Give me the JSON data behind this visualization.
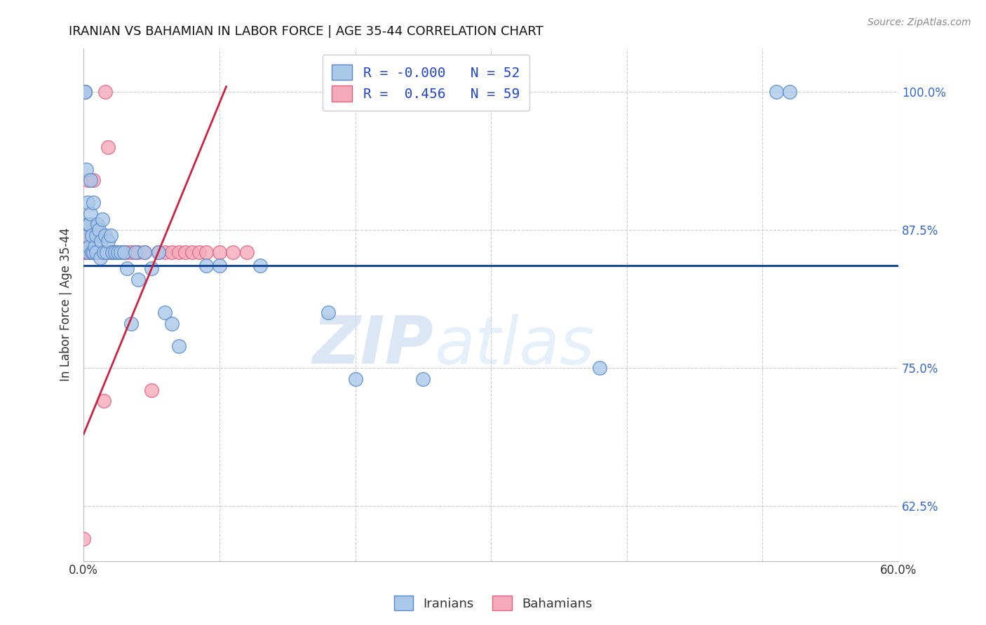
{
  "title": "IRANIAN VS BAHAMIAN IN LABOR FORCE | AGE 35-44 CORRELATION CHART",
  "source": "Source: ZipAtlas.com",
  "ylabel": "In Labor Force | Age 35-44",
  "xlim": [
    0.0,
    0.6
  ],
  "ylim": [
    0.575,
    1.04
  ],
  "xticks": [
    0.0,
    0.1,
    0.2,
    0.3,
    0.4,
    0.5,
    0.6
  ],
  "xticklabels": [
    "0.0%",
    "",
    "",
    "",
    "",
    "",
    "60.0%"
  ],
  "yticks": [
    0.625,
    0.75,
    0.875,
    1.0
  ],
  "yticklabels": [
    "62.5%",
    "75.0%",
    "87.5%",
    "100.0%"
  ],
  "blue_color": "#aac8e8",
  "pink_color": "#f5aabb",
  "blue_edge": "#5588cc",
  "pink_edge": "#e06080",
  "blue_trend_color": "#1a4a9a",
  "pink_trend_color": "#cc2244",
  "legend_R_blue": "-0.000",
  "legend_N_blue": "52",
  "legend_R_pink": "0.456",
  "legend_N_pink": "59",
  "blue_trend_y": 0.843,
  "pink_trend_x0": 0.0,
  "pink_trend_y0": 0.69,
  "pink_trend_x1": 0.105,
  "pink_trend_y1": 1.005,
  "blue_x": [
    0.001,
    0.001,
    0.002,
    0.002,
    0.003,
    0.003,
    0.003,
    0.004,
    0.004,
    0.005,
    0.005,
    0.006,
    0.006,
    0.007,
    0.007,
    0.008,
    0.009,
    0.009,
    0.01,
    0.011,
    0.012,
    0.013,
    0.014,
    0.015,
    0.016,
    0.017,
    0.018,
    0.02,
    0.021,
    0.023,
    0.025,
    0.027,
    0.03,
    0.032,
    0.035,
    0.038,
    0.04,
    0.045,
    0.05,
    0.055,
    0.06,
    0.065,
    0.07,
    0.09,
    0.1,
    0.13,
    0.18,
    0.2,
    0.25,
    0.38,
    0.51,
    0.52
  ],
  "blue_y": [
    1.0,
    1.0,
    0.87,
    0.93,
    0.88,
    0.9,
    0.855,
    0.88,
    0.86,
    0.89,
    0.92,
    0.87,
    0.855,
    0.9,
    0.855,
    0.86,
    0.87,
    0.855,
    0.88,
    0.875,
    0.85,
    0.865,
    0.885,
    0.855,
    0.87,
    0.855,
    0.865,
    0.87,
    0.855,
    0.855,
    0.855,
    0.855,
    0.855,
    0.84,
    0.79,
    0.855,
    0.83,
    0.855,
    0.84,
    0.855,
    0.8,
    0.79,
    0.77,
    0.843,
    0.843,
    0.843,
    0.8,
    0.74,
    0.74,
    0.75,
    1.0,
    1.0
  ],
  "pink_x": [
    0.0,
    0.0,
    0.001,
    0.001,
    0.001,
    0.001,
    0.002,
    0.002,
    0.002,
    0.003,
    0.003,
    0.003,
    0.004,
    0.004,
    0.004,
    0.005,
    0.005,
    0.005,
    0.006,
    0.006,
    0.006,
    0.007,
    0.007,
    0.007,
    0.008,
    0.008,
    0.009,
    0.009,
    0.01,
    0.01,
    0.011,
    0.012,
    0.013,
    0.015,
    0.016,
    0.017,
    0.018,
    0.02,
    0.022,
    0.025,
    0.03,
    0.032,
    0.035,
    0.038,
    0.04,
    0.045,
    0.05,
    0.055,
    0.06,
    0.065,
    0.07,
    0.075,
    0.08,
    0.085,
    0.09,
    0.1,
    0.11,
    0.12,
    0.025
  ],
  "pink_y": [
    0.595,
    0.855,
    0.855,
    0.855,
    0.87,
    1.0,
    0.87,
    0.855,
    0.855,
    0.87,
    0.855,
    0.92,
    0.88,
    0.855,
    0.855,
    0.86,
    0.855,
    0.855,
    0.87,
    0.855,
    0.855,
    0.875,
    0.855,
    0.92,
    0.855,
    0.855,
    0.88,
    0.855,
    0.855,
    0.87,
    0.855,
    0.87,
    0.855,
    0.72,
    1.0,
    0.855,
    0.95,
    0.855,
    0.855,
    0.855,
    0.855,
    0.855,
    0.855,
    0.855,
    0.855,
    0.855,
    0.73,
    0.855,
    0.855,
    0.855,
    0.855,
    0.855,
    0.855,
    0.855,
    0.855,
    0.855,
    0.855,
    0.855,
    0.855
  ],
  "watermark_zip": "ZIP",
  "watermark_atlas": "atlas",
  "background_color": "#ffffff",
  "grid_color": "#cccccc"
}
